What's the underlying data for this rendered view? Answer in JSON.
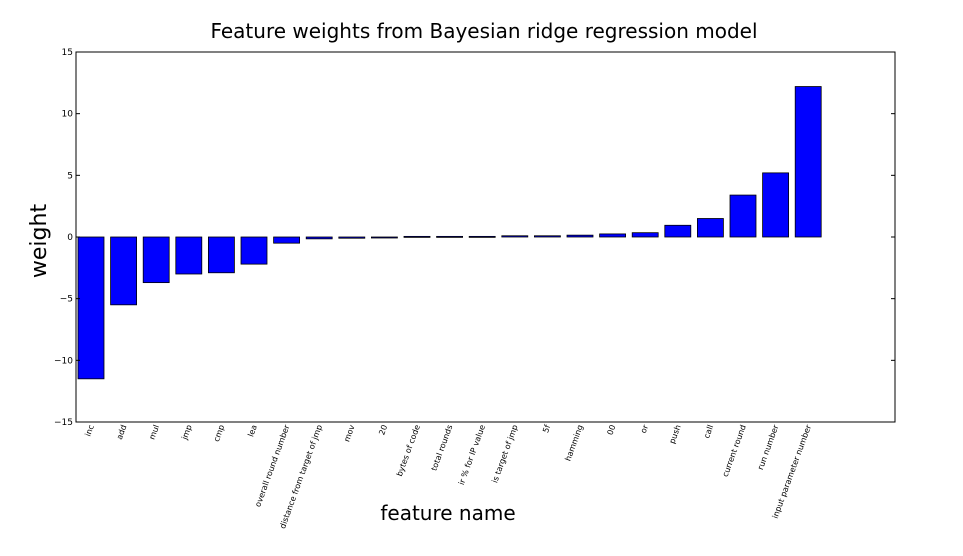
{
  "chart_data": {
    "type": "bar",
    "title": "Feature weights from Bayesian ridge regression model",
    "xlabel": "feature name",
    "ylabel": "weight",
    "ylim": [
      -15,
      15
    ],
    "yticks": [
      "15",
      "10",
      "5",
      "0",
      "−5",
      "−10",
      "−15"
    ],
    "grid": false,
    "bar_color": "#0000ff",
    "categories": [
      "inc",
      "add",
      "mul",
      "jmp",
      "cmp",
      "lea",
      "overall round number",
      "distance from target of jmp",
      "mov",
      "20",
      "bytes of code",
      "total rounds",
      "ir % for IP value",
      "is target of jmp",
      "5f",
      "hamming",
      "00",
      "or",
      "push",
      "call",
      "current round",
      "run number",
      "input parameter number"
    ],
    "values": [
      -11.5,
      -5.5,
      -3.7,
      -3.0,
      -2.9,
      -2.2,
      -0.5,
      -0.15,
      -0.1,
      -0.05,
      0.05,
      0.05,
      0.05,
      0.1,
      0.1,
      0.15,
      0.25,
      0.35,
      0.95,
      1.5,
      3.4,
      5.2,
      12.2
    ]
  }
}
